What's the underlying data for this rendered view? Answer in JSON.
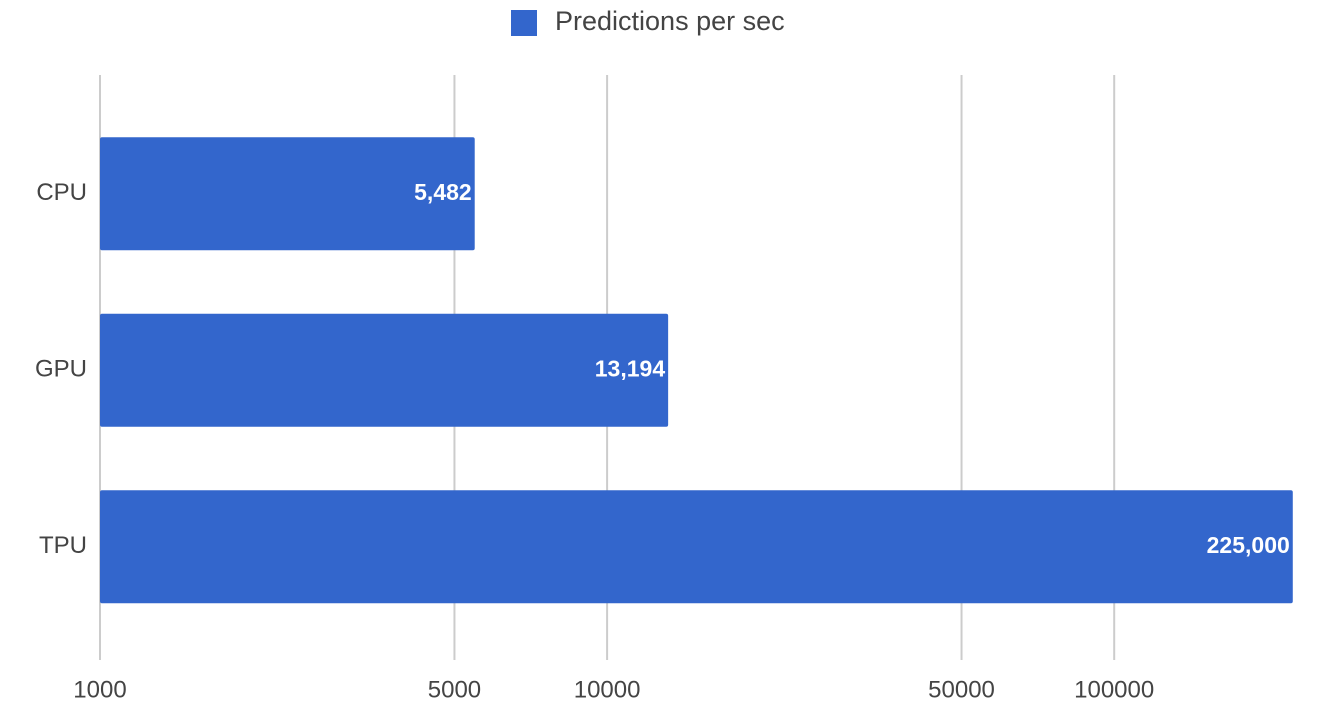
{
  "chart_data": {
    "type": "hbar",
    "categories": [
      "CPU",
      "GPU",
      "TPU"
    ],
    "series": [
      {
        "name": "Predictions per sec",
        "color": "#3366cc",
        "values": [
          5482,
          13194,
          225000
        ],
        "value_labels": [
          "5,482",
          "13,194",
          "225,000"
        ]
      }
    ],
    "xscale": "log",
    "xlim": [
      1000,
      240000
    ],
    "xticks": [
      1000,
      5000,
      10000,
      50000,
      100000
    ],
    "grid": true,
    "legend": "top"
  }
}
